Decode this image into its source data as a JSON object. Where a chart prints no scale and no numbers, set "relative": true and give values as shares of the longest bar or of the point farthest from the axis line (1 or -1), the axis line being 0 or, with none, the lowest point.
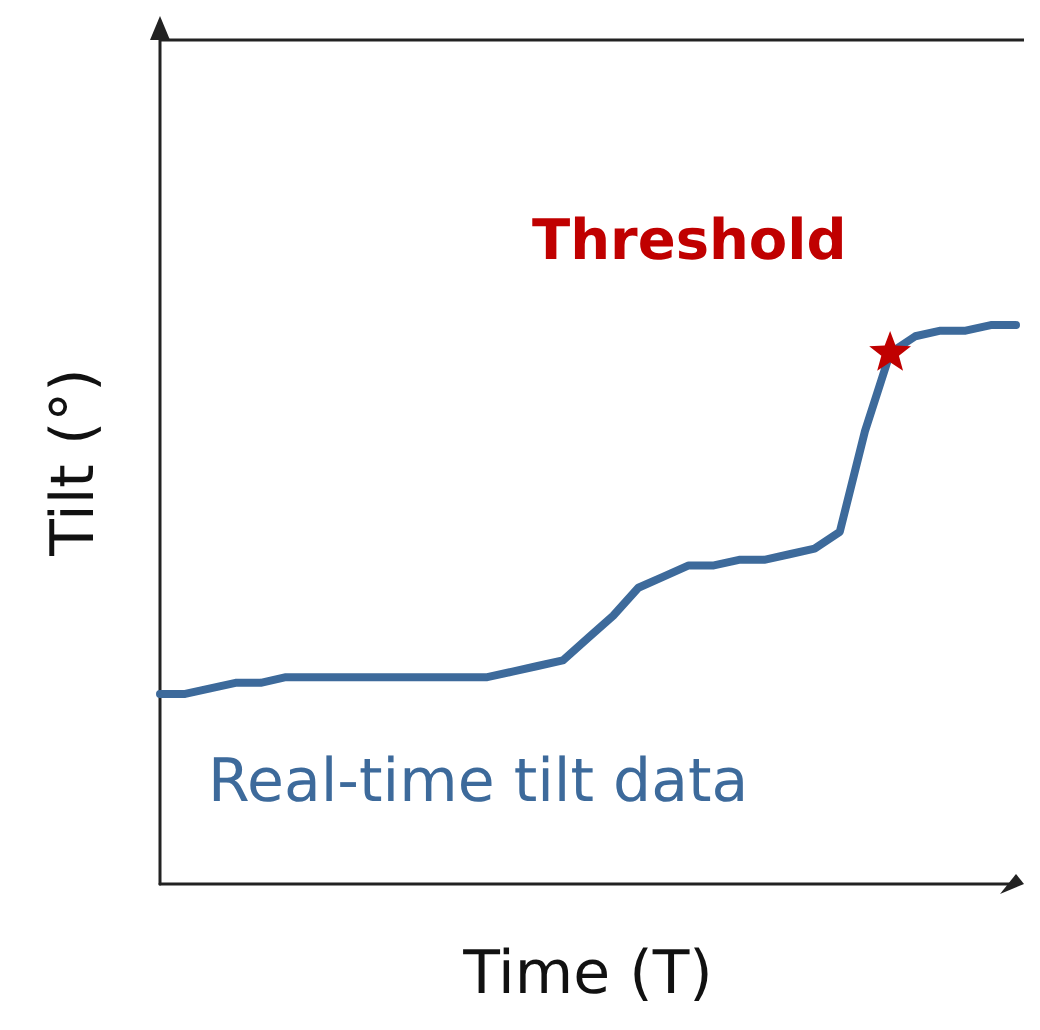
{
  "chart_data": {
    "type": "line",
    "relative": true,
    "xlabel": "Time (T)",
    "ylabel": "Tilt (°)",
    "marker": "none",
    "categories": [
      null,
      null,
      null,
      null,
      null,
      null,
      null,
      null,
      null,
      null,
      null,
      null,
      null,
      null,
      null,
      null,
      null,
      null,
      null,
      null,
      null,
      null,
      null,
      null,
      null,
      null,
      null,
      null,
      null,
      null,
      null,
      null,
      null,
      null,
      null
    ],
    "annotations": [
      "Threshold"
    ],
    "series": [
      {
        "name": "Real-time tilt data",
        "color": "#3d6a9b",
        "values": [
          0.34,
          0.34,
          0.35,
          0.36,
          0.36,
          0.37,
          0.37,
          0.37,
          0.37,
          0.37,
          0.37,
          0.37,
          0.37,
          0.37,
          0.38,
          0.39,
          0.4,
          0.44,
          0.48,
          0.53,
          0.55,
          0.57,
          0.57,
          0.58,
          0.58,
          0.59,
          0.6,
          0.63,
          0.81,
          0.95,
          0.98,
          0.99,
          0.99,
          1.0,
          1.0
        ]
      }
    ]
  }
}
